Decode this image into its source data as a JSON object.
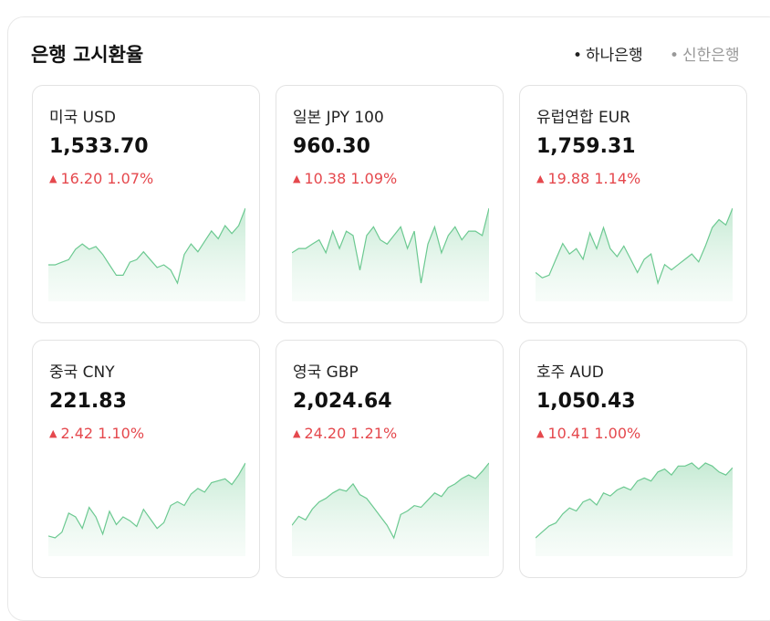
{
  "header": {
    "title": "은행 고시환율",
    "tabs": [
      "하나은행",
      "신한은행"
    ]
  },
  "cards": [
    {
      "name": "미국 USD",
      "value": "1,533.70",
      "change": "16.20",
      "percent": "1.07%",
      "spark": [
        1512,
        1512,
        1513,
        1514,
        1518,
        1520,
        1518,
        1519,
        1516,
        1512,
        1508,
        1508,
        1513,
        1514,
        1517,
        1514,
        1511,
        1512,
        1510,
        1505,
        1516,
        1520,
        1517,
        1521,
        1525,
        1522,
        1527,
        1524,
        1527,
        1533.7
      ]
    },
    {
      "name": "일본 JPY 100",
      "value": "960.30",
      "change": "10.38",
      "percent": "1.09%",
      "spark": [
        950,
        951,
        951,
        952,
        953,
        950,
        955,
        951,
        955,
        954,
        946,
        954,
        956,
        953,
        952,
        954,
        956,
        951,
        955,
        943,
        952,
        956,
        950,
        954,
        956,
        953,
        955,
        955,
        954,
        960.3
      ]
    },
    {
      "name": "유럽연합 EUR",
      "value": "1,759.31",
      "change": "19.88",
      "percent": "1.14%",
      "spark": [
        1735,
        1733,
        1734,
        1740,
        1746,
        1742,
        1744,
        1740,
        1750,
        1744,
        1752,
        1744,
        1741,
        1745,
        1740,
        1735,
        1740,
        1742,
        1731,
        1738,
        1736,
        1738,
        1740,
        1742,
        1739,
        1745,
        1752,
        1755,
        1753,
        1759.31
      ]
    },
    {
      "name": "중국 CNY",
      "value": "221.83",
      "change": "2.42",
      "percent": "1.10%",
      "spark": [
        218.0,
        217.9,
        218.2,
        219.2,
        219.0,
        218.4,
        219.5,
        219.0,
        218.1,
        219.3,
        218.6,
        219.0,
        218.8,
        218.5,
        219.4,
        218.9,
        218.4,
        218.7,
        219.6,
        219.8,
        219.6,
        220.2,
        220.5,
        220.3,
        220.8,
        220.9,
        221.0,
        220.7,
        221.2,
        221.83
      ]
    },
    {
      "name": "영국 GBP",
      "value": "2,024.64",
      "change": "24.20",
      "percent": "1.21%",
      "spark": [
        1990,
        1995,
        1993,
        1999,
        2003,
        2005,
        2008,
        2010,
        2009,
        2013,
        2007,
        2005,
        2000,
        1995,
        1990,
        1983,
        1996,
        1998,
        2001,
        2000,
        2004,
        2008,
        2006,
        2011,
        2013,
        2016,
        2018,
        2016,
        2020,
        2024.64
      ]
    },
    {
      "name": "호주 AUD",
      "value": "1,050.43",
      "change": "10.41",
      "percent": "1.00%",
      "spark": [
        1027,
        1029,
        1031,
        1032,
        1035,
        1037,
        1036,
        1039,
        1040,
        1038,
        1042,
        1041,
        1043,
        1044,
        1043,
        1046,
        1047,
        1046,
        1049,
        1050,
        1048,
        1051,
        1051,
        1052,
        1050,
        1052,
        1051,
        1049,
        1048,
        1050.43
      ]
    }
  ]
}
